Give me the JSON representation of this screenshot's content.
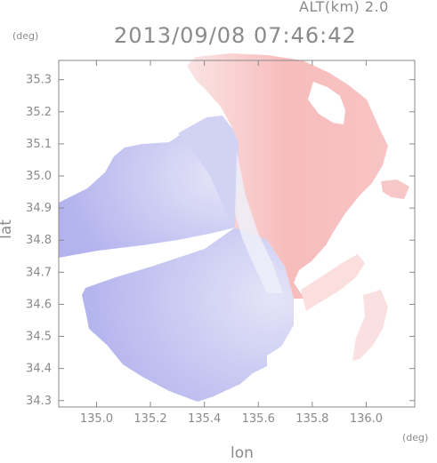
{
  "header": {
    "altitude_label": "ALT(km) 2.0",
    "timestamp": "2013/09/08 07:46:42"
  },
  "chart_data": {
    "type": "heatmap",
    "title": "2013/09/08 07:46:42",
    "subtitle": "ALT(km) 2.0",
    "xlabel": "lon",
    "ylabel": "lat",
    "x_unit": "(deg)",
    "y_unit": "(deg)",
    "xlim": [
      134.86,
      136.18
    ],
    "ylim": [
      34.28,
      35.36
    ],
    "x_ticks": [
      "135.0",
      "135.2",
      "135.4",
      "135.6",
      "135.8",
      "136.0"
    ],
    "y_ticks": [
      "34.3",
      "34.4",
      "34.5",
      "34.6",
      "34.7",
      "34.8",
      "34.9",
      "35.0",
      "35.1",
      "35.2",
      "35.3"
    ],
    "grid": false,
    "colors": {
      "approaching": "#a9a9ec",
      "receding": "#f6b6b6",
      "axis": "#8a8a8a"
    }
  }
}
